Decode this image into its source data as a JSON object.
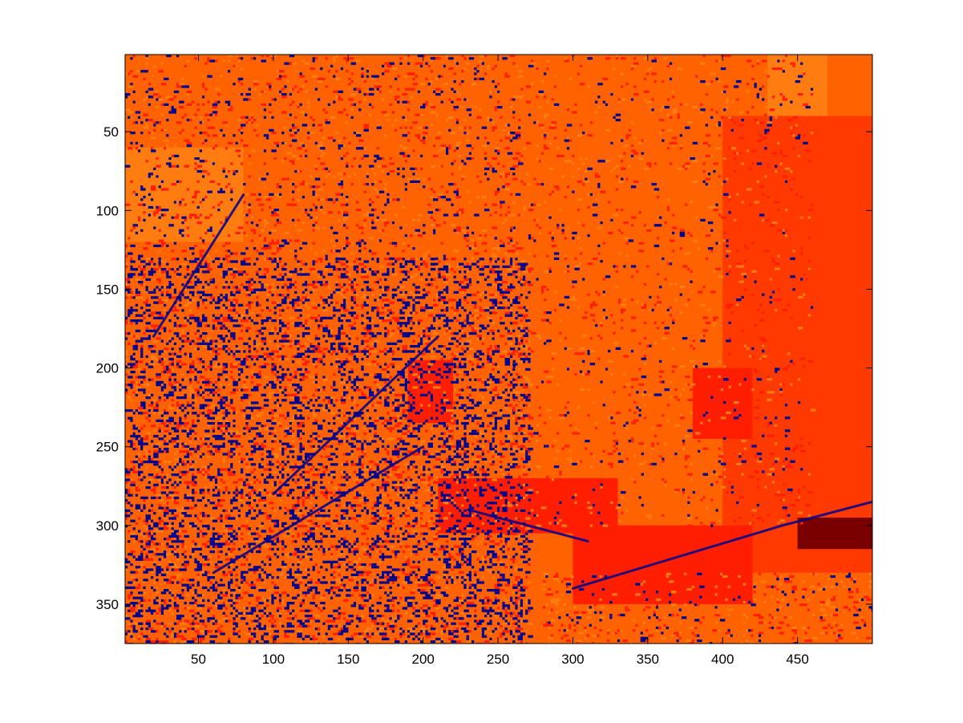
{
  "chart_data": {
    "type": "heatmap",
    "title": "",
    "xlabel": "",
    "ylabel": "",
    "xlim": [
      1,
      500
    ],
    "ylim": [
      375,
      1
    ],
    "y_direction": "reversed",
    "grid": false,
    "legend": "none",
    "x_ticks": [
      {
        "value": 50,
        "label": "50"
      },
      {
        "value": 100,
        "label": "100"
      },
      {
        "value": 150,
        "label": "150"
      },
      {
        "value": 200,
        "label": "200"
      },
      {
        "value": 250,
        "label": "250"
      },
      {
        "value": 300,
        "label": "300"
      },
      {
        "value": 350,
        "label": "350"
      },
      {
        "value": 400,
        "label": "400"
      },
      {
        "value": 450,
        "label": "450"
      }
    ],
    "y_ticks": [
      {
        "value": 50,
        "label": "50"
      },
      {
        "value": 100,
        "label": "100"
      },
      {
        "value": 150,
        "label": "150"
      },
      {
        "value": 200,
        "label": "200"
      },
      {
        "value": 250,
        "label": "250"
      },
      {
        "value": 300,
        "label": "300"
      },
      {
        "value": 350,
        "label": "350"
      }
    ],
    "colormap": [
      "#00008f",
      "#ff1f00",
      "#ff3a00",
      "#ff6200",
      "#ff7d10",
      "#7a0000"
    ],
    "background_class_color": "#ff6200",
    "regions": [
      {
        "x": [
          1,
          500
        ],
        "y": [
          1,
          375
        ],
        "color": "#ff6200"
      },
      {
        "x": [
          400,
          500
        ],
        "y": [
          40,
          330
        ],
        "color": "#ff3a00"
      },
      {
        "x": [
          300,
          420
        ],
        "y": [
          300,
          350
        ],
        "color": "#ff1f00"
      },
      {
        "x": [
          210,
          330
        ],
        "y": [
          270,
          305
        ],
        "color": "#ff1f00"
      },
      {
        "x": [
          430,
          470
        ],
        "y": [
          1,
          40
        ],
        "color": "#ff7d10"
      },
      {
        "x": [
          380,
          420
        ],
        "y": [
          200,
          245
        ],
        "color": "#ff1f00"
      },
      {
        "x": [
          450,
          500
        ],
        "y": [
          295,
          315
        ],
        "color": "#7a0000"
      },
      {
        "x": [
          1,
          80
        ],
        "y": [
          60,
          120
        ],
        "color": "#ff7d10"
      },
      {
        "x": [
          190,
          220
        ],
        "y": [
          195,
          235
        ],
        "color": "#ff1f00"
      }
    ],
    "noise_zones": [
      {
        "x": [
          1,
          270
        ],
        "y": [
          130,
          375
        ],
        "blue_density": 0.16,
        "red_density": 0.12
      },
      {
        "x": [
          1,
          260
        ],
        "y": [
          1,
          130
        ],
        "blue_density": 0.04,
        "red_density": 0.08
      },
      {
        "x": [
          260,
          460
        ],
        "y": [
          1,
          300
        ],
        "blue_density": 0.015,
        "red_density": 0.05
      },
      {
        "x": [
          280,
          500
        ],
        "y": [
          330,
          375
        ],
        "blue_density": 0.03,
        "red_density": 0.1
      }
    ],
    "edge_strokes": [
      {
        "from": [
          100,
          280
        ],
        "to": [
          210,
          180
        ],
        "color": "#00008f"
      },
      {
        "from": [
          60,
          330
        ],
        "to": [
          200,
          250
        ],
        "color": "#00008f"
      },
      {
        "from": [
          20,
          180
        ],
        "to": [
          80,
          90
        ],
        "color": "#00008f"
      },
      {
        "from": [
          300,
          340
        ],
        "to": [
          440,
          300
        ],
        "color": "#00008f"
      },
      {
        "from": [
          440,
          300
        ],
        "to": [
          500,
          285
        ],
        "color": "#00008f"
      },
      {
        "from": [
          230,
          290
        ],
        "to": [
          310,
          310
        ],
        "color": "#00008f"
      }
    ]
  }
}
